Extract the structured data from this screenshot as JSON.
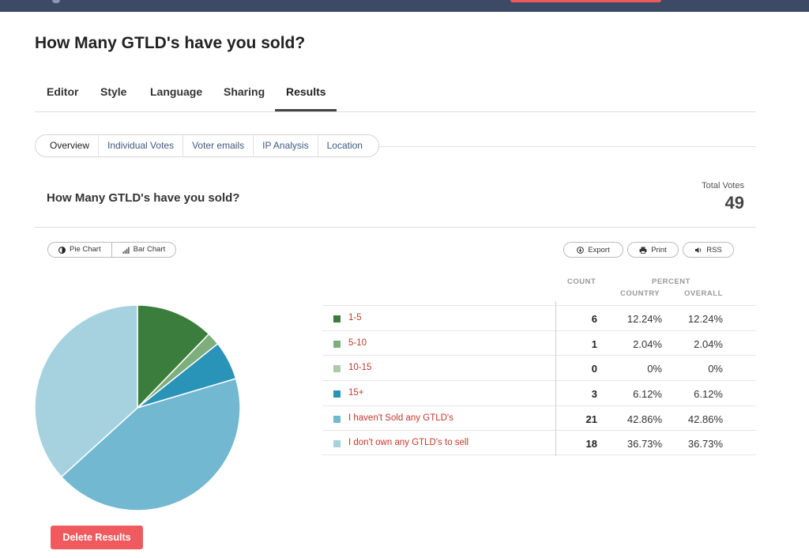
{
  "page": {
    "title": "How Many GTLD's have you sold?"
  },
  "tabs": [
    {
      "label": "Editor"
    },
    {
      "label": "Style"
    },
    {
      "label": "Language"
    },
    {
      "label": "Sharing"
    },
    {
      "label": "Results"
    }
  ],
  "subnav": [
    {
      "label": "Overview"
    },
    {
      "label": "Individual Votes"
    },
    {
      "label": "Voter emails"
    },
    {
      "label": "IP Analysis"
    },
    {
      "label": "Location"
    }
  ],
  "results": {
    "title": "How Many GTLD's have you sold?",
    "total_label": "Total Votes",
    "total_value": "49"
  },
  "chart_toggle": {
    "pie_label": "Pie Chart",
    "bar_label": "Bar Chart"
  },
  "actions": {
    "export_label": "Export",
    "print_label": "Print",
    "rss_label": "RSS"
  },
  "table": {
    "count_header": "COUNT",
    "percent_header": "PERCENT",
    "country_header": "COUNTRY",
    "overall_header": "OVERALL",
    "rows": [
      {
        "label": "1-5",
        "count": "6",
        "country": "12.24%",
        "overall": "12.24%",
        "color": "#3a7d3c"
      },
      {
        "label": "5-10",
        "count": "1",
        "country": "2.04%",
        "overall": "2.04%",
        "color": "#7fae7d"
      },
      {
        "label": "10-15",
        "count": "0",
        "country": "0%",
        "overall": "0%",
        "color": "#a9cca7"
      },
      {
        "label": "15+",
        "count": "3",
        "country": "6.12%",
        "overall": "6.12%",
        "color": "#2a93b8"
      },
      {
        "label": "I haven't Sold any GTLD's",
        "count": "21",
        "country": "42.86%",
        "overall": "42.86%",
        "color": "#71b8d0"
      },
      {
        "label": "I don't own any GTLD's to sell",
        "count": "18",
        "country": "36.73%",
        "overall": "36.73%",
        "color": "#a6d2e0"
      }
    ]
  },
  "chart_data": {
    "type": "pie",
    "categories": [
      "1-5",
      "5-10",
      "10-15",
      "15+",
      "I haven't Sold any GTLD's",
      "I don't own any GTLD's to sell"
    ],
    "values": [
      6,
      1,
      0,
      3,
      21,
      18
    ],
    "colors": [
      "#3a7d3c",
      "#7fae7d",
      "#a9cca7",
      "#2a93b8",
      "#71b8d0",
      "#a6d2e0"
    ]
  },
  "delete_button": {
    "label": "Delete Results"
  }
}
